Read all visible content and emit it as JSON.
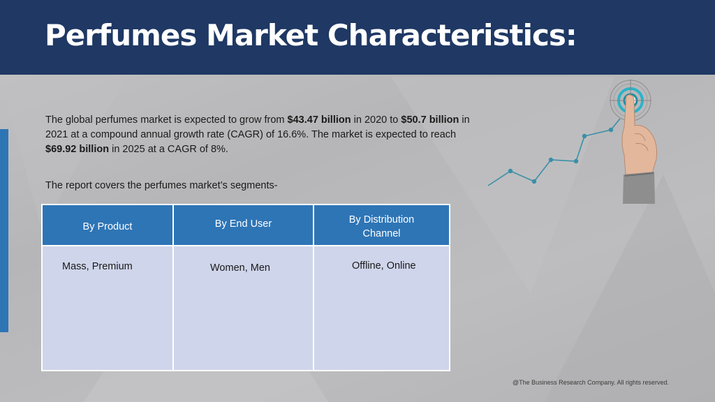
{
  "slide": {
    "title": "Perfumes Market Characteristics:",
    "intro": {
      "t1": "The global perfumes market is expected to grow from ",
      "b1": "$43.47 billion",
      "t2": " in 2020 to ",
      "b2": "$50.7 billion",
      "t3": " in 2021 at a compound annual growth rate (CAGR) of 16.6%. The market is expected to reach ",
      "b3": "$69.92 billion",
      "t4": " in 2025 at a CAGR of 8%."
    },
    "segments_intro": "The report covers the perfumes market’s segments-",
    "table": {
      "headers": [
        "By Product",
        "By End User",
        "By Distribution Channel"
      ],
      "cells": [
        "Mass, Premium",
        "Women, Men",
        "Offline, Online"
      ]
    },
    "footer": "@The Business Research Company. All rights reserved."
  },
  "colors": {
    "header_bg": "#1f3864",
    "table_header": "#2e75b6",
    "table_body": "#cfd5ea",
    "accent": "#2e75b6",
    "line_chart": "#3a8fa8"
  },
  "icons": [
    "target-icon",
    "hand-pointing-icon",
    "growth-line-icon"
  ]
}
